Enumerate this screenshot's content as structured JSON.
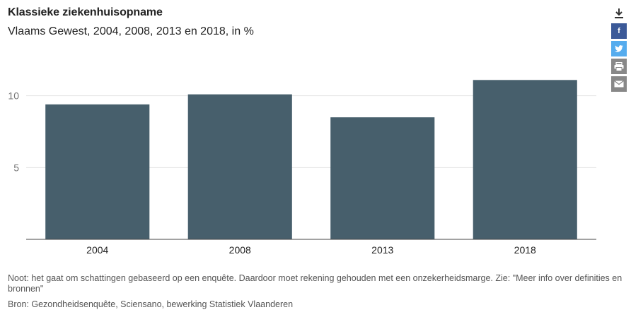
{
  "header": {
    "title": "Klassieke ziekenhuisopname",
    "subtitle": "Vlaams Gewest, 2004, 2008, 2013 en 2018, in %"
  },
  "toolbar": {
    "download_icon": "download-icon",
    "facebook_label": "f",
    "twitter_icon": "twitter-icon",
    "print_icon": "print-icon",
    "mail_icon": "mail-icon",
    "colors": {
      "facebook": "#3b5998",
      "twitter": "#55acee",
      "neutral": "#888888"
    }
  },
  "chart_data": {
    "type": "bar",
    "title": "Klassieke ziekenhuisopname",
    "subtitle": "Vlaams Gewest, 2004, 2008, 2013 en 2018, in %",
    "categories": [
      "2004",
      "2008",
      "2013",
      "2018"
    ],
    "values": [
      9.4,
      10.1,
      8.5,
      11.1
    ],
    "ylim": [
      0,
      12
    ],
    "yticks": [
      5,
      10
    ],
    "grid": true,
    "bar_color": "#475f6c"
  },
  "footer": {
    "note": "Noot: het gaat om schattingen gebaseerd op een enquête. Daardoor moet rekening gehouden met een onzekerheidsmarge. Zie: \"Meer info over definities en bronnen\"",
    "source": "Bron: Gezondheidsenquête, Sciensano, bewerking Statistiek Vlaanderen"
  }
}
